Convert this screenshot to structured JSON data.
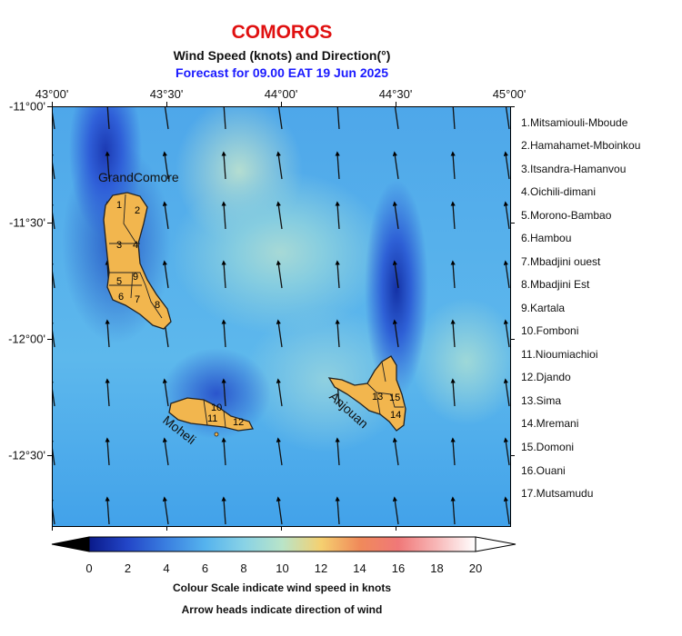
{
  "header": {
    "country": "COMOROS",
    "subtitle": "Wind Speed (knots) and Direction(°)",
    "forecast": "Forecast for  09.00 EAT 19 Jun 2025"
  },
  "axes": {
    "longitudes": [
      "43°00'",
      "43°30'",
      "44°00'",
      "44°30'",
      "45°00'"
    ],
    "latitudes": [
      "-11°00'",
      "-11°30'",
      "-12°00'",
      "-12°30'"
    ]
  },
  "islands": {
    "grand_comore": "GrandComore",
    "moheli": "Moheli",
    "anjouan": "Anjouan"
  },
  "region_numbers": [
    "1",
    "2",
    "3",
    "4",
    "5",
    "6",
    "7",
    "8",
    "9",
    "10",
    "11",
    "12",
    "13",
    "14",
    "15"
  ],
  "regions": [
    "1.Mitsamiouli-Mboude",
    "2.Hamahamet-Mboinkou",
    "3.Itsandra-Hamanvou",
    "4.Oichili-dimani",
    "5.Morono-Bambao",
    "6.Hambou",
    "7.Mbadjini ouest",
    "8.Mbadjini Est",
    "9.Kartala",
    "10.Fomboni",
    "11.Nioumiachioi",
    "12.Djando",
    "13.Sima",
    "14.Mremani",
    "15.Domoni",
    "16.Ouani",
    "17.Mutsamudu"
  ],
  "colorbar": {
    "ticks": [
      "0",
      "2",
      "4",
      "6",
      "8",
      "10",
      "12",
      "14",
      "16",
      "18",
      "20"
    ],
    "colors": [
      "#0a1a8a",
      "#2346c8",
      "#3a7fe0",
      "#55b3ee",
      "#88d2e6",
      "#b9e4c8",
      "#f5d070",
      "#f08a5a",
      "#f07878",
      "#f8b8b8",
      "#ffffff"
    ],
    "caption": "Colour Scale indicate wind speed in knots",
    "note": "Arrow heads indicate direction of wind"
  },
  "wind_direction": "north, slightly west of north"
}
